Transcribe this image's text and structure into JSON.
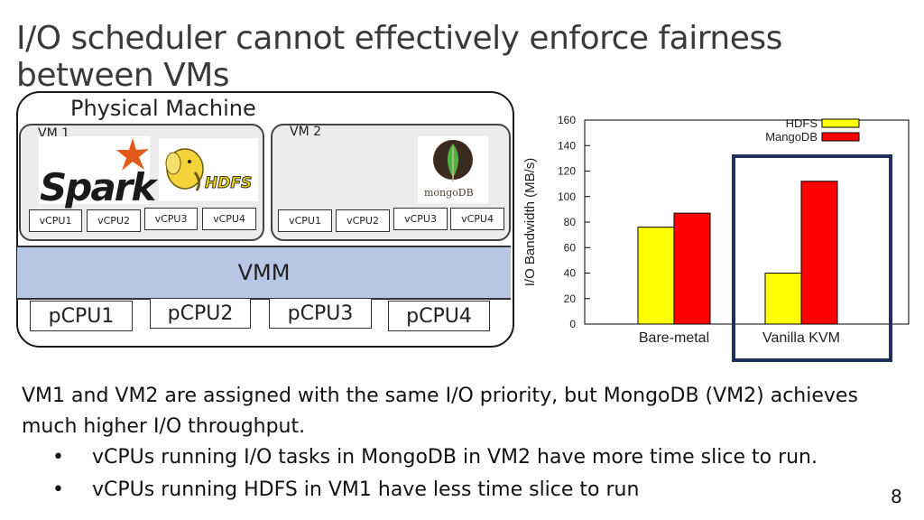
{
  "slide": {
    "title": "I/O scheduler cannot effectively enforce fairness between VMs",
    "page_number": "8"
  },
  "diagram": {
    "physical_machine_label": "Physical Machine",
    "vm1": {
      "label": "VM 1",
      "logos": [
        "Spark",
        "HDFS"
      ],
      "vcpus": [
        "vCPU1",
        "vCPU2",
        "vCPU3",
        "vCPU4"
      ]
    },
    "vm2": {
      "label": "VM 2",
      "logos": [
        "mongoDB"
      ],
      "vcpus": [
        "vCPU1",
        "vCPU2",
        "vCPU3",
        "vCPU4"
      ]
    },
    "vmm_label": "VMM",
    "pcpus": [
      "pCPU1",
      "pCPU2",
      "pCPU3",
      "pCPU4"
    ]
  },
  "chart_data": {
    "type": "bar",
    "categories": [
      "Bare-metal",
      "Vanilla KVM"
    ],
    "series": [
      {
        "name": "HDFS",
        "color": "#ffff00",
        "values": [
          76,
          40
        ]
      },
      {
        "name": "MangoDB",
        "color": "#ff0000",
        "values": [
          87,
          112
        ]
      }
    ],
    "ylabel": "I/O Bandwidth (MB/s)",
    "ylim": [
      0,
      160
    ],
    "yticks": [
      0,
      20,
      40,
      60,
      80,
      100,
      120,
      140,
      160
    ],
    "legend_position": "top-right",
    "highlight": {
      "category": "Vanilla KVM",
      "color": "#1f2f5e"
    }
  },
  "text": {
    "paragraph": "VM1 and VM2 are assigned with the same I/O priority, but MongoDB (VM2) achieves much higher I/O throughput.",
    "bullets": [
      "vCPUs running I/O tasks in MongoDB in VM2 have more time slice to run.",
      "vCPUs running HDFS in VM1 have less time slice to run"
    ],
    "bullet_symbol": "•"
  }
}
